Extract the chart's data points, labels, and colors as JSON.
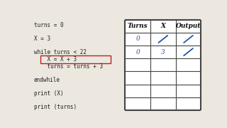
{
  "bg_color": "#ece8e0",
  "code_lines": [
    [
      "turns = 0",
      false
    ],
    [
      "",
      false
    ],
    [
      "X = 3",
      false
    ],
    [
      "",
      false
    ],
    [
      "while turns < 22",
      false
    ],
    [
      "    X = X + 3",
      true
    ],
    [
      "    turns = turns + 3",
      false
    ],
    [
      "",
      false
    ],
    [
      "endwhile",
      false
    ],
    [
      "",
      false
    ],
    [
      "print (X)",
      false
    ],
    [
      "",
      false
    ],
    [
      "print (turns)",
      false
    ]
  ],
  "highlight_color": "#bb2222",
  "text_color": "#222222",
  "table_headers": [
    "Turns",
    "X",
    "Output"
  ],
  "table_data_rows": 6,
  "slash_color": "#2255aa",
  "zero_color": "#2255aa",
  "three_color": "#2255aa",
  "code_font_size": 5.5,
  "table_header_font_size": 6.5,
  "table_data_font_size": 6.5
}
